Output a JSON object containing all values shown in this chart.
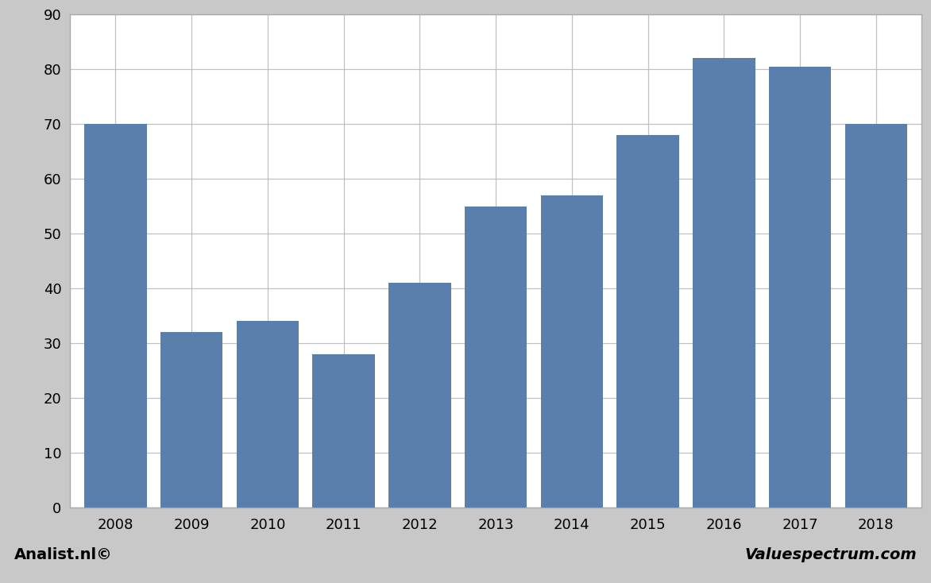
{
  "categories": [
    "2008",
    "2009",
    "2010",
    "2011",
    "2012",
    "2013",
    "2014",
    "2015",
    "2016",
    "2017",
    "2018"
  ],
  "values": [
    70.0,
    32.0,
    34.0,
    28.0,
    41.0,
    55.0,
    57.0,
    68.0,
    82.0,
    80.5,
    70.0
  ],
  "bar_color": "#5b7fad",
  "ylim": [
    0,
    90
  ],
  "yticks": [
    0,
    10,
    20,
    30,
    40,
    50,
    60,
    70,
    80,
    90
  ],
  "plot_bg_color": "#ffffff",
  "outer_bg_color": "#c8c8c8",
  "footer_bg_color": "#c8c8c8",
  "grid_color": "#c0c0c0",
  "spine_color": "#aaaaaa",
  "footer_left": "Analist.nl©",
  "footer_right": "Valuespectrum.com",
  "footer_fontsize": 14,
  "tick_fontsize": 13,
  "bar_width": 0.82
}
